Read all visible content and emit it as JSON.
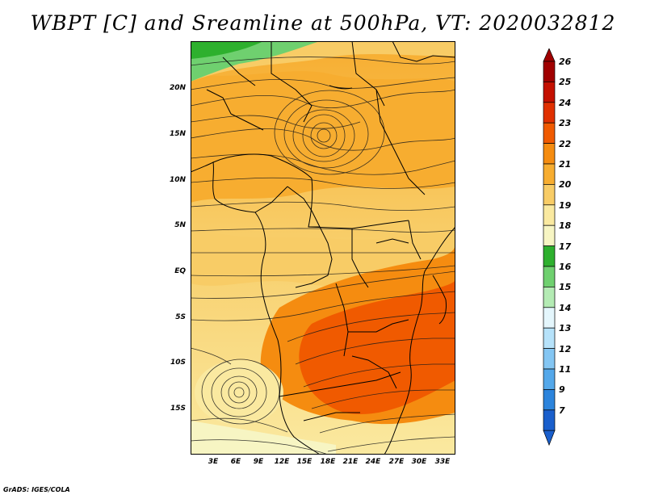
{
  "title": "WBPT [C] and Sreamline at 500hPa, VT: 2020032812",
  "credit": "GrADS: IGES/COLA",
  "lat_labels": [
    "20N",
    "15N",
    "10N",
    "5N",
    "EQ",
    "5S",
    "10S",
    "15S"
  ],
  "lon_labels": [
    "3E",
    "6E",
    "9E",
    "12E",
    "15E",
    "18E",
    "21E",
    "24E",
    "27E",
    "30E",
    "33E"
  ],
  "colorbar": {
    "labels": [
      "26",
      "25",
      "24",
      "23",
      "22",
      "21",
      "20",
      "19",
      "18",
      "17",
      "16",
      "15",
      "14",
      "13",
      "12",
      "11",
      "9",
      "7"
    ],
    "colors": [
      "#a00000",
      "#c41000",
      "#e03000",
      "#f05a00",
      "#f58c10",
      "#f7ad30",
      "#f8cc66",
      "#fae9a0",
      "#f7f5c3",
      "#2eb02e",
      "#6fd06f",
      "#b4ebb4",
      "#e4f6fc",
      "#b6e2fa",
      "#84c6f3",
      "#54a8ea",
      "#2c84dc",
      "#1a5fcc"
    ],
    "tip_top_color": "#a00000",
    "tip_bottom_color": "#1a5fcc"
  },
  "colors": {
    "ocean_cool": "#fae9a0",
    "warm_band": "#f7ad30",
    "hot_core": "#f05a00",
    "sahara_green": "#6fd06f"
  }
}
